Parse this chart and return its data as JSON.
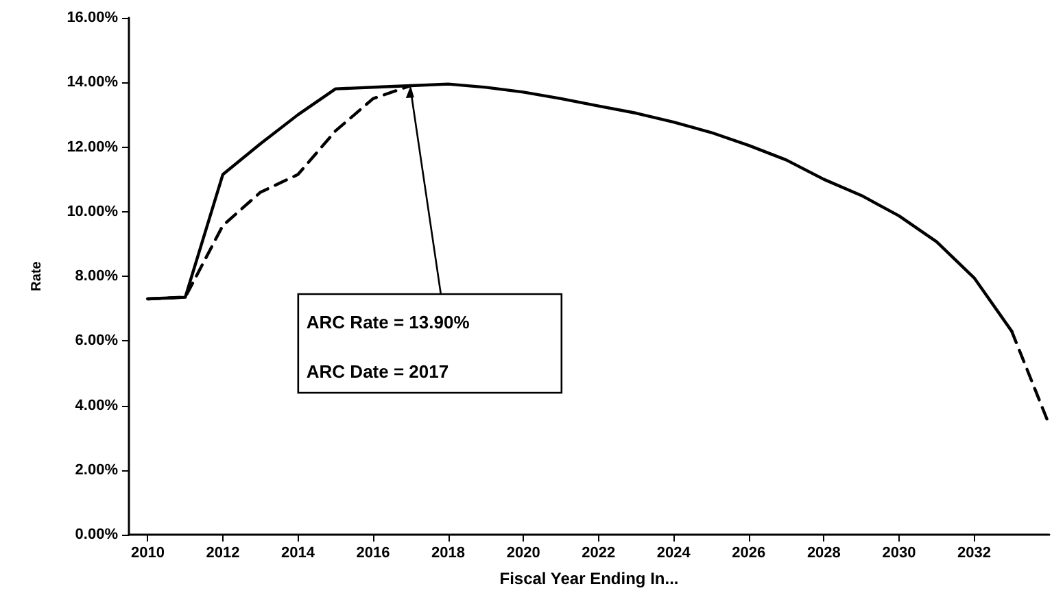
{
  "chart_data": {
    "type": "line",
    "xlabel": "Fiscal Year Ending In...",
    "ylabel": "Rate",
    "x": [
      2010,
      2011,
      2012,
      2013,
      2014,
      2015,
      2016,
      2017,
      2018,
      2019,
      2020,
      2021,
      2022,
      2023,
      2024,
      2025,
      2026,
      2027,
      2028,
      2029,
      2030,
      2031,
      2032,
      2033,
      2034
    ],
    "series": [
      {
        "color": "#000000",
        "line_style": "solid",
        "values": [
          7.3,
          7.35,
          11.15,
          12.1,
          13.0,
          13.8,
          13.85,
          13.9,
          13.95,
          13.85,
          13.7,
          13.5,
          13.27,
          13.05,
          12.77,
          12.45,
          12.05,
          11.6,
          11.0,
          10.5,
          9.87,
          9.07,
          7.95,
          6.3,
          null
        ]
      },
      {
        "color": "#000000",
        "line_style": "dashed",
        "values": [
          7.3,
          7.35,
          9.57,
          10.6,
          11.15,
          12.5,
          13.5,
          13.9,
          null,
          null,
          null,
          null,
          null,
          null,
          null,
          null,
          null,
          null,
          null,
          null,
          null,
          null,
          null,
          6.3,
          3.4
        ]
      }
    ],
    "xlim": [
      2009.5,
      2034
    ],
    "xticks": [
      2010,
      2012,
      2014,
      2016,
      2018,
      2020,
      2022,
      2024,
      2026,
      2028,
      2030,
      2032
    ],
    "ylim": [
      0,
      16
    ],
    "yticks": [
      {
        "value": 0,
        "label": "0.00%"
      },
      {
        "value": 2,
        "label": "2.00%"
      },
      {
        "value": 4,
        "label": "4.00%"
      },
      {
        "value": 6,
        "label": "6.00%"
      },
      {
        "value": 8,
        "label": "8.00%"
      },
      {
        "value": 10,
        "label": "10.00%"
      },
      {
        "value": 12,
        "label": "12.00%"
      },
      {
        "value": 14,
        "label": "14.00%"
      },
      {
        "value": 16,
        "label": "16.00%"
      }
    ],
    "annotations": [
      {
        "text": "ARC Rate = 13.90%",
        "x": 2017,
        "y": 13.9
      },
      "ARC Date = 2017"
    ],
    "grid": false,
    "marker": "none"
  }
}
